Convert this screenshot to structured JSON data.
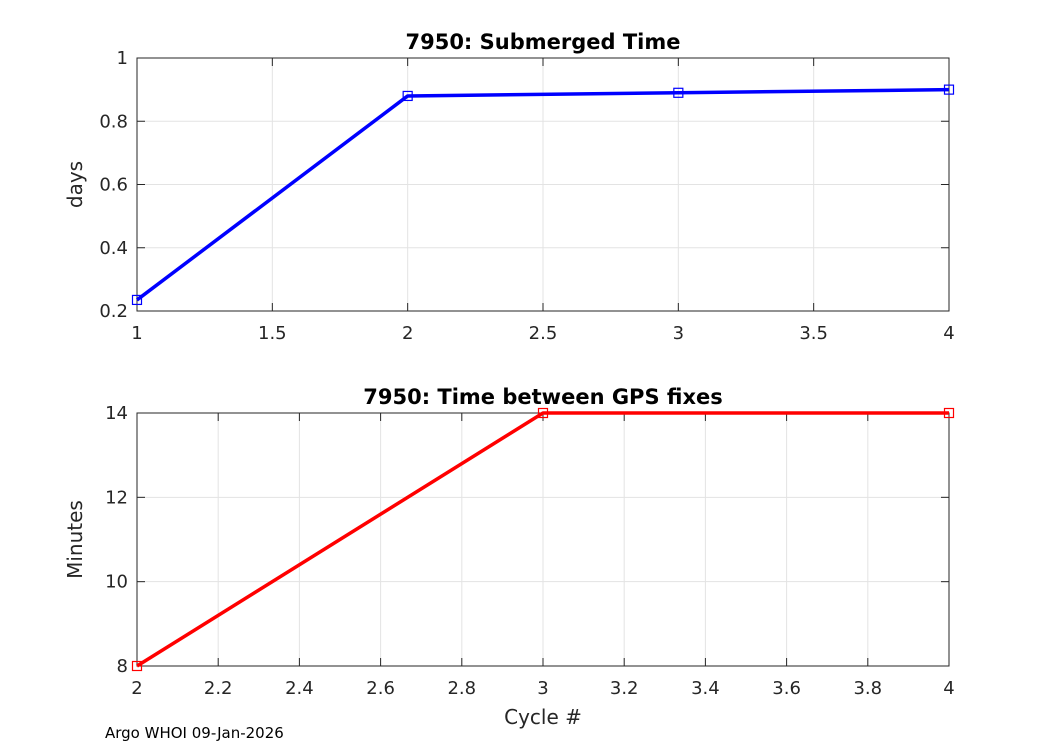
{
  "chart_data": [
    {
      "type": "line",
      "title": "7950: Submerged Time",
      "xlabel": "",
      "ylabel": "days",
      "xlim": [
        1,
        4
      ],
      "ylim": [
        0.2,
        1
      ],
      "x_ticks": [
        "1",
        "1.5",
        "2",
        "2.5",
        "3",
        "3.5",
        "4"
      ],
      "y_ticks": [
        "0.2",
        "0.4",
        "0.6",
        "0.8",
        "1"
      ],
      "grid": true,
      "series": [
        {
          "x": [
            1,
            2,
            3,
            4
          ],
          "y": [
            0.235,
            0.88,
            0.89,
            0.9
          ],
          "color": "#0000ff",
          "marker": "square"
        }
      ]
    },
    {
      "type": "line",
      "title": "7950: Time between GPS fixes",
      "xlabel": "Cycle #",
      "ylabel": "Minutes",
      "xlim": [
        2,
        4
      ],
      "ylim": [
        8,
        14
      ],
      "x_ticks": [
        "2",
        "2.2",
        "2.4",
        "2.6",
        "2.8",
        "3",
        "3.2",
        "3.4",
        "3.6",
        "3.8",
        "4"
      ],
      "y_ticks": [
        "8",
        "10",
        "12",
        "14"
      ],
      "grid": true,
      "series": [
        {
          "x": [
            2,
            3,
            4
          ],
          "y": [
            8,
            14,
            14
          ],
          "color": "#ff0000",
          "marker": "square"
        }
      ]
    }
  ],
  "footer": "Argo WHOI 09-Jan-2026"
}
